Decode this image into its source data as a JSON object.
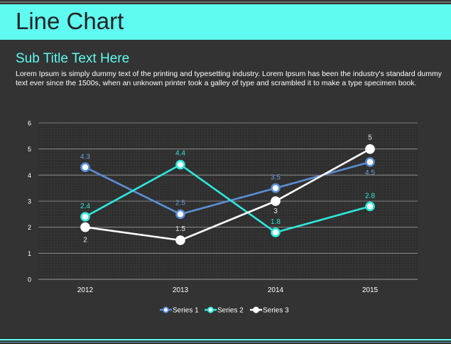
{
  "header": {
    "title": "Line Chart"
  },
  "subtitle": "Sub Title Text Here",
  "body_text": "Lorem Ipsum is simply dummy text of the printing and typesetting industry. Lorem Ipsum has been the industry's standard dummy text ever since the 1500s, when an unknown printer took a galley of type and scrambled it to make a type specimen book.",
  "colors": {
    "accent": "#5ffbf1",
    "background": "#333333",
    "series_1": "#5b8fd6",
    "series_2": "#2ee8dc",
    "series_3": "#ffffff"
  },
  "chart_data": {
    "type": "line",
    "categories": [
      "2012",
      "2013",
      "2014",
      "2015"
    ],
    "series": [
      {
        "name": "Series 1",
        "values": [
          4.3,
          2.5,
          3.5,
          4.5
        ]
      },
      {
        "name": "Series 2",
        "values": [
          2.4,
          4.4,
          1.8,
          2.8
        ]
      },
      {
        "name": "Series 3",
        "values": [
          2,
          1.5,
          3,
          5
        ]
      }
    ],
    "ylim": [
      0,
      6
    ],
    "yticks": [
      "0",
      "1",
      "2",
      "3",
      "4",
      "5",
      "6"
    ],
    "grid": true,
    "data_labels": true,
    "legend": "bottom"
  }
}
